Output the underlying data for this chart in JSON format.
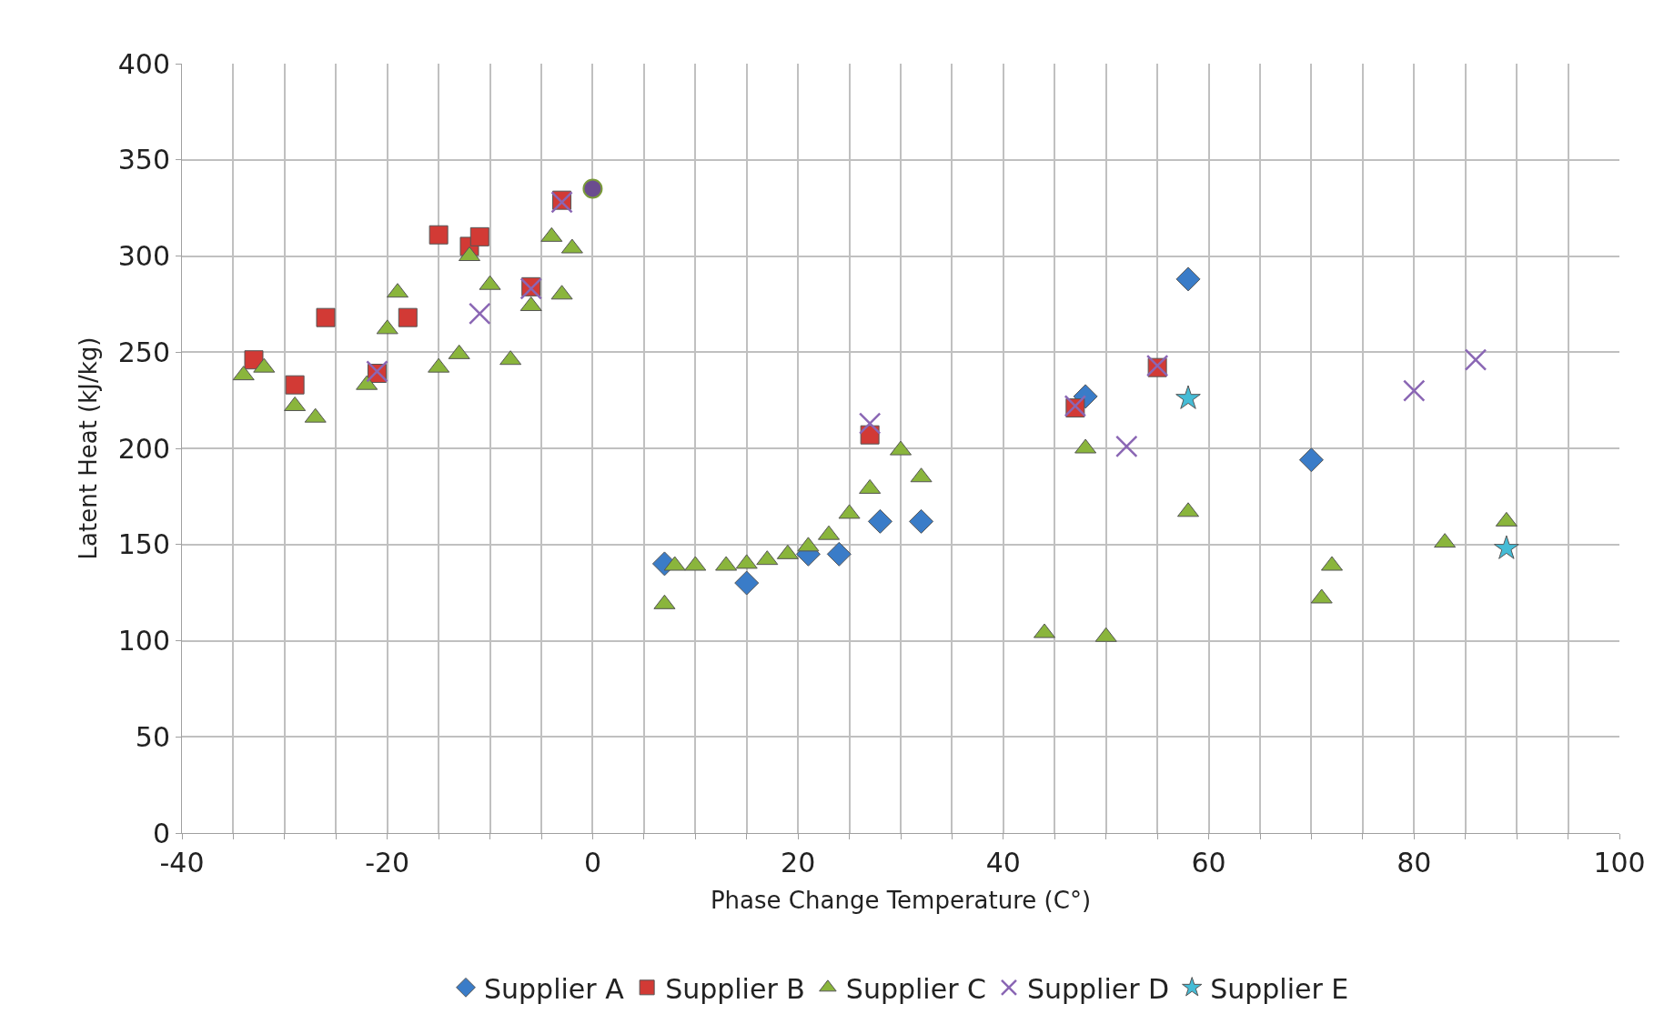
{
  "chart_data": {
    "type": "scatter",
    "xlabel": "Phase Change Temperature (C°)",
    "ylabel": "Latent Heat (kJ/kg)",
    "xlim": [
      -40,
      100
    ],
    "ylim": [
      0,
      400
    ],
    "xticks": [
      -40,
      {
        "value": -35,
        "label": null
      },
      {
        "value": -30,
        "label": null
      },
      {
        "value": -25,
        "label": null
      },
      -20,
      {
        "value": -15,
        "label": null
      },
      {
        "value": -10,
        "label": null
      },
      {
        "value": -5,
        "label": null
      },
      0,
      {
        "value": 5,
        "label": null
      },
      {
        "value": 10,
        "label": null
      },
      {
        "value": 15,
        "label": null
      },
      20,
      {
        "value": 25,
        "label": null
      },
      {
        "value": 30,
        "label": null
      },
      {
        "value": 35,
        "label": null
      },
      40,
      {
        "value": 45,
        "label": null
      },
      {
        "value": 50,
        "label": null
      },
      {
        "value": 55,
        "label": null
      },
      60,
      {
        "value": 65,
        "label": null
      },
      {
        "value": 70,
        "label": null
      },
      {
        "value": 75,
        "label": null
      },
      80,
      {
        "value": 85,
        "label": null
      },
      {
        "value": 90,
        "label": null
      },
      {
        "value": 95,
        "label": null
      },
      100
    ],
    "yticks": [
      0,
      50,
      100,
      150,
      200,
      250,
      300,
      350,
      400
    ],
    "grid": true,
    "legend": "bottom",
    "series": [
      {
        "name": "Supplier A",
        "color": "#3a7cc8",
        "marker": "diamond",
        "x": [
          7,
          15,
          21,
          24,
          28,
          32,
          48,
          58,
          70
        ],
        "values": [
          140,
          130,
          145,
          145,
          162,
          162,
          227,
          288,
          194
        ]
      },
      {
        "name": "Supplier B",
        "color": "#d23a35",
        "marker": "square",
        "x": [
          -33,
          -29,
          -26,
          -21,
          -18,
          -15,
          -12,
          -11,
          -6,
          -3,
          27,
          47,
          55
        ],
        "values": [
          246,
          233,
          268,
          239,
          268,
          311,
          305,
          310,
          284,
          329,
          207,
          221,
          242
        ]
      },
      {
        "name": "Supplier C",
        "color": "#8ab53c",
        "marker": "triangle",
        "x": [
          -34,
          -32,
          -29,
          -27,
          -22,
          -20,
          -19,
          -15,
          -13,
          -12,
          -10,
          -8,
          -6,
          -4,
          -3,
          -2,
          7,
          8,
          10,
          13,
          15,
          17,
          19,
          21,
          23,
          25,
          27,
          30,
          32,
          44,
          48,
          50,
          58,
          71,
          72,
          83,
          89
        ],
        "values": [
          238,
          242,
          222,
          216,
          233,
          262,
          281,
          242,
          249,
          300,
          285,
          246,
          274,
          310,
          280,
          304,
          119,
          139,
          139,
          139,
          140,
          142,
          145,
          149,
          155,
          166,
          179,
          199,
          185,
          104,
          200,
          102,
          167,
          122,
          139,
          151,
          162
        ]
      },
      {
        "name": "Supplier D",
        "color": "#8a66b4",
        "marker": "cross",
        "x": [
          -21,
          -11,
          -6,
          -3,
          27,
          47,
          52,
          55,
          80,
          86
        ],
        "values": [
          240,
          270,
          283,
          328,
          213,
          222,
          201,
          243,
          230,
          246
        ]
      },
      {
        "name": "Supplier E",
        "color": "#45bcd6",
        "marker": "star",
        "x": [
          58,
          89
        ],
        "values": [
          226,
          148
        ]
      },
      {
        "color": "#6b4c8f",
        "marker": "circle",
        "x": [
          0
        ],
        "values": [
          335
        ]
      }
    ]
  }
}
